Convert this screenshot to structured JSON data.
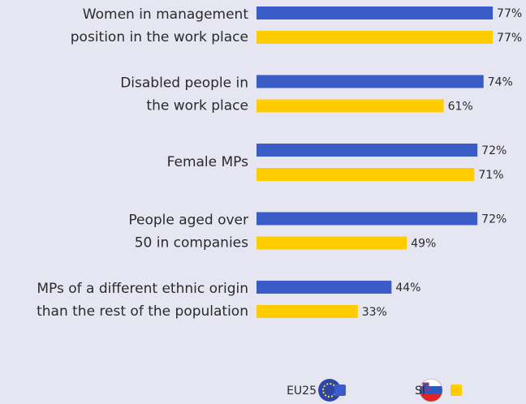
{
  "chart_data": {
    "type": "hbar",
    "categories": [
      [
        "Women in management",
        "position in the work place"
      ],
      [
        "Disabled people in",
        "the work place"
      ],
      [
        "Female MPs"
      ],
      [
        "People aged over",
        "50 in companies"
      ],
      [
        "MPs of a different ethnic origin",
        "than the rest of the population"
      ]
    ],
    "series": [
      {
        "name": "EU25",
        "color": "#3b5bc6",
        "values": [
          77,
          74,
          72,
          72,
          44
        ],
        "value_labels": [
          "77%",
          "74%",
          "72%",
          "72%",
          "44%"
        ]
      },
      {
        "name": "SI",
        "color": "#ffcc00",
        "values": [
          77,
          61,
          71,
          49,
          33
        ],
        "value_labels": [
          "77%",
          "61%",
          "71%",
          "49%",
          "33%"
        ]
      }
    ],
    "xlim": [
      0,
      100
    ]
  }
}
